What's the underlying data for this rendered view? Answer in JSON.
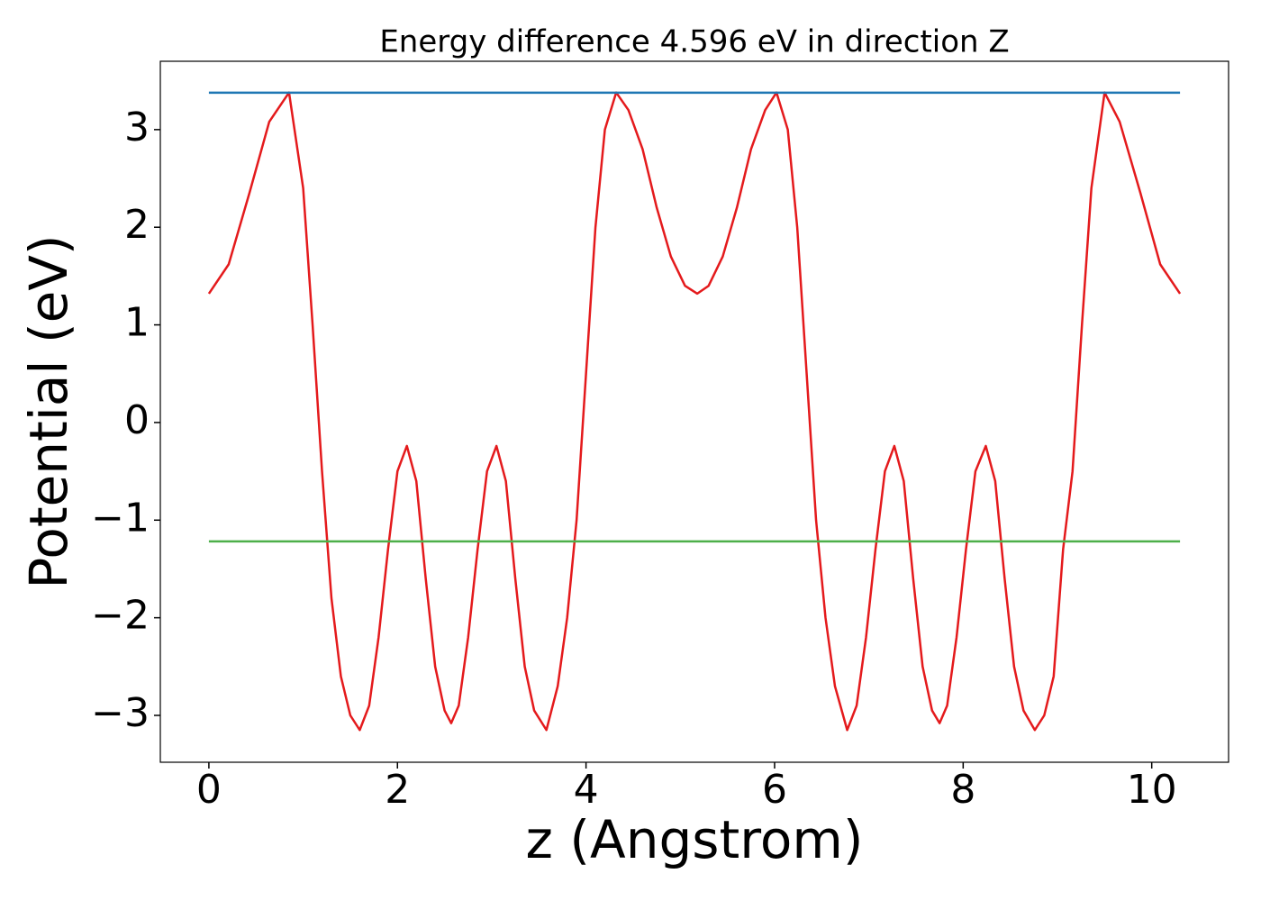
{
  "chart_data": {
    "type": "line",
    "title": "Energy difference 4.596 eV in direction Z",
    "xlabel": "z (Angstrom)",
    "ylabel": "Potential (eV)",
    "xlim": [
      -0.515,
      10.815
    ],
    "ylim": [
      -3.48,
      3.7
    ],
    "xticks": [
      0,
      2,
      4,
      6,
      8,
      10
    ],
    "yticks": [
      {
        "value": -3,
        "label": "−3"
      },
      {
        "value": -2,
        "label": "−2"
      },
      {
        "value": -1,
        "label": "−1"
      },
      0,
      1,
      2,
      3
    ],
    "grid": false,
    "series": [
      {
        "color": "#e41a1c",
        "x": [
          0,
          0.21,
          0.43,
          0.64,
          0.85,
          1.0,
          1.1,
          1.2,
          1.3,
          1.4,
          1.5,
          1.6,
          1.7,
          1.8,
          1.9,
          2.0,
          2.1,
          2.2,
          2.3,
          2.4,
          2.5,
          2.57,
          2.65,
          2.75,
          2.85,
          2.95,
          3.05,
          3.15,
          3.25,
          3.35,
          3.45,
          3.58,
          3.7,
          3.8,
          3.9,
          4.0,
          4.1,
          4.2,
          4.32,
          4.45,
          4.6,
          4.75,
          4.9,
          5.05,
          5.18,
          5.3,
          5.45,
          5.6,
          5.75,
          5.9,
          6.02,
          6.14,
          6.24,
          6.34,
          6.44,
          6.54,
          6.64,
          6.77,
          6.87,
          6.97,
          7.07,
          7.17,
          7.27,
          7.37,
          7.47,
          7.57,
          7.67,
          7.75,
          7.83,
          7.93,
          8.03,
          8.13,
          8.24,
          8.34,
          8.44,
          8.54,
          8.64,
          8.76,
          8.86,
          8.96,
          9.06,
          9.16,
          9.26,
          9.36,
          9.5,
          9.66,
          9.88,
          10.09,
          10.3
        ],
        "values": [
          1.32,
          1.62,
          2.35,
          3.08,
          3.38,
          2.4,
          1.0,
          -0.5,
          -1.8,
          -2.6,
          -3.0,
          -3.15,
          -2.9,
          -2.2,
          -1.3,
          -0.5,
          -0.24,
          -0.6,
          -1.6,
          -2.5,
          -2.95,
          -3.08,
          -2.9,
          -2.2,
          -1.3,
          -0.5,
          -0.24,
          -0.6,
          -1.6,
          -2.5,
          -2.95,
          -3.15,
          -2.7,
          -2.0,
          -1.0,
          0.5,
          2.0,
          3.0,
          3.38,
          3.2,
          2.8,
          2.2,
          1.7,
          1.4,
          1.32,
          1.4,
          1.7,
          2.2,
          2.8,
          3.2,
          3.38,
          3.0,
          2.0,
          0.5,
          -1.0,
          -2.0,
          -2.7,
          -3.15,
          -2.9,
          -2.2,
          -1.3,
          -0.5,
          -0.24,
          -0.6,
          -1.6,
          -2.5,
          -2.95,
          -3.08,
          -2.9,
          -2.2,
          -1.3,
          -0.5,
          -0.24,
          -0.6,
          -1.6,
          -2.5,
          -2.95,
          -3.15,
          -3.0,
          -2.6,
          -1.3,
          -0.5,
          1.0,
          2.4,
          3.38,
          3.08,
          2.35,
          1.62,
          1.32
        ]
      },
      {
        "color": "#1f77b4",
        "x": [
          0,
          10.3
        ],
        "values": [
          3.378,
          3.378
        ]
      },
      {
        "color": "#4daf4a",
        "x": [
          0,
          10.3
        ],
        "values": [
          -1.218,
          -1.218
        ]
      }
    ]
  }
}
